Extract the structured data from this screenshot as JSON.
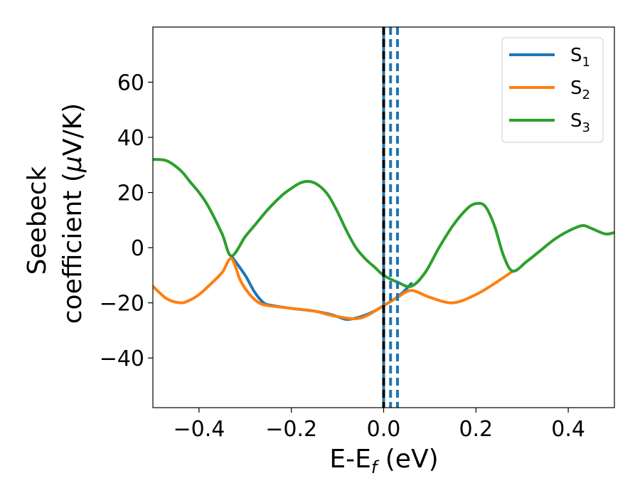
{
  "chart_data": {
    "type": "line",
    "xlabel": "E-E",
    "xlabel_sub": "f",
    "xlabel_unit": " (eV)",
    "ylabel_line1": "Seebeck",
    "ylabel_line2_pre": "coefficient  (",
    "ylabel_mu": "μ",
    "ylabel_line2_post": "V/K)",
    "xlim": [
      -0.5,
      0.5
    ],
    "ylim": [
      -58,
      80
    ],
    "x_ticks": [
      -0.4,
      -0.2,
      0.0,
      0.2,
      0.4
    ],
    "x_tick_labels": [
      "−0.4",
      "−0.2",
      "0.0",
      "0.2",
      "0.4"
    ],
    "y_ticks": [
      -40,
      -20,
      0,
      20,
      40,
      60
    ],
    "y_tick_labels": [
      "−40",
      "−20",
      "0",
      "20",
      "40",
      "60"
    ],
    "grid": false,
    "legend_position": "top-right",
    "vlines": [
      {
        "x": 0.0,
        "color": "#1f77b4",
        "style": "solid"
      },
      {
        "x": 0.0,
        "color": "#000000",
        "style": "dashed"
      },
      {
        "x": 0.015,
        "color": "#1f77b4",
        "style": "dashed"
      },
      {
        "x": 0.03,
        "color": "#1f77b4",
        "style": "dashed"
      }
    ],
    "series": [
      {
        "name": "S",
        "sub": "1",
        "color": "#1f77b4",
        "x": [
          -0.33,
          -0.3,
          -0.28,
          -0.26,
          -0.24,
          -0.2,
          -0.15,
          -0.12,
          -0.1,
          -0.08,
          -0.06,
          -0.04,
          -0.02,
          0.0,
          0.02,
          0.04,
          0.06
        ],
        "y": [
          -3,
          -10,
          -16,
          -20,
          -21,
          -22,
          -23,
          -24,
          -25,
          -26,
          -25.5,
          -24.5,
          -23,
          -21,
          -19,
          -16.5,
          -13
        ]
      },
      {
        "name": "S",
        "sub": "2",
        "color": "#ff7f0e",
        "x": [
          -0.5,
          -0.47,
          -0.44,
          -0.42,
          -0.4,
          -0.38,
          -0.35,
          -0.33,
          -0.31,
          -0.29,
          -0.27,
          -0.25,
          -0.2,
          -0.15,
          -0.1,
          -0.05,
          0.0,
          0.03,
          0.06,
          0.1,
          0.15,
          0.2,
          0.24,
          0.28
        ],
        "y": [
          -14,
          -18.5,
          -20,
          -19,
          -17,
          -14,
          -9,
          -4,
          -12,
          -17,
          -20,
          -21,
          -22,
          -23,
          -25,
          -25.5,
          -21,
          -18,
          -15.5,
          -18,
          -20,
          -17,
          -13,
          -8.5
        ]
      },
      {
        "name": "S",
        "sub": "3",
        "color": "#2ca02c",
        "x": [
          -0.5,
          -0.47,
          -0.44,
          -0.42,
          -0.4,
          -0.38,
          -0.35,
          -0.33,
          -0.3,
          -0.28,
          -0.25,
          -0.22,
          -0.2,
          -0.18,
          -0.16,
          -0.14,
          -0.12,
          -0.1,
          -0.08,
          -0.06,
          -0.04,
          -0.02,
          0.0,
          0.03,
          0.06,
          0.09,
          0.12,
          0.15,
          0.18,
          0.2,
          0.22,
          0.24,
          0.26,
          0.28,
          0.31,
          0.34,
          0.37,
          0.4,
          0.43,
          0.45,
          0.48,
          0.5
        ],
        "y": [
          32,
          31.5,
          28,
          24,
          20,
          15,
          5,
          -3,
          4,
          8,
          14,
          19,
          21.5,
          23.5,
          24,
          22.5,
          19,
          13,
          6,
          0,
          -4,
          -7,
          -10,
          -12.5,
          -14,
          -9,
          0,
          8,
          14,
          16,
          15,
          8,
          -3,
          -8.5,
          -5,
          -1,
          3,
          6,
          8,
          7,
          5,
          5.5
        ]
      }
    ]
  }
}
